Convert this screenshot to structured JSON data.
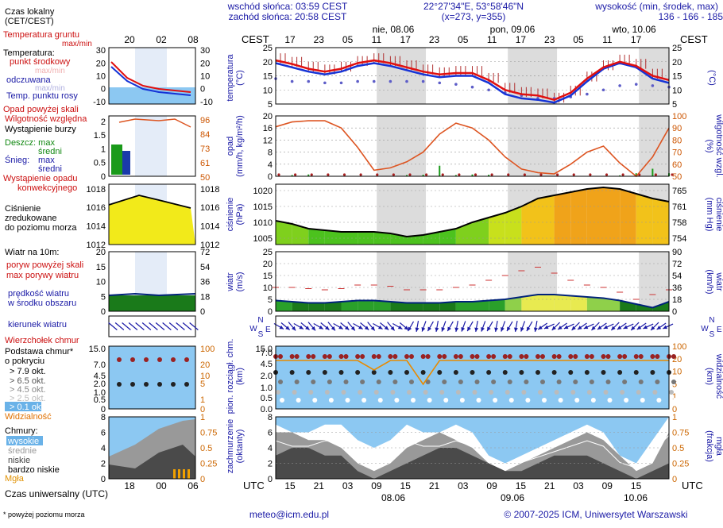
{
  "header": {
    "sunrise": "wschód słońca: 03:59 CEST",
    "sunset": "zachód słońca: 20:58 CEST",
    "coords": "22°27'34\"E, 53°58'46\"N",
    "grid": "(x=273, y=355)",
    "elev_title": "wysokość (min, środek, max)",
    "elev_values": "136 - 166 - 185 m"
  },
  "dates_top": [
    "nie, 08.06",
    "pon, 09.06",
    "wto, 10.06"
  ],
  "dates_bottom": [
    "08.06",
    "09.06",
    "10.06"
  ],
  "cest_label": "CEST",
  "utc_label": "UTC",
  "cest_ticks": [
    "17",
    "23",
    "05",
    "11",
    "17",
    "23",
    "05",
    "11",
    "17",
    "23",
    "05",
    "11",
    "17"
  ],
  "utc_ticks": [
    "15",
    "21",
    "03",
    "09",
    "15",
    "21",
    "03",
    "09",
    "15",
    "21",
    "03",
    "09",
    "15"
  ],
  "legend_local_ticks": [
    "20",
    "02",
    "08"
  ],
  "legend_utc_ticks": [
    "18",
    "00",
    "06"
  ],
  "legend": {
    "local_time": "Czas lokalny",
    "local_time2": "(CET/CEST)",
    "ground_temp": "Temperatura gruntu",
    "ground_temp2": "max/min",
    "temperature": "Temperatura:",
    "mid_point": "punkt środkowy",
    "max_min": "max/min",
    "felt": "odczuwana",
    "dew": "Temp. punktu rosy",
    "precip_above": "Opad powyżej skali",
    "humidity": "Wilgotność względna",
    "storm": "Wystąpienie burzy",
    "rain": "Deszcz: max",
    "avg1": "średni",
    "snow": "Śnieg:",
    "snow_max": "max",
    "avg2": "średni",
    "conv1": "Wystąpienie opadu",
    "conv2": "konwekcyjnego",
    "pressure1": "Ciśnienie",
    "pressure2": "zredukowane",
    "pressure3": "do poziomu morza",
    "wind_title": "Wiatr na 10m:",
    "gust_above": "poryw powyżej skali",
    "gust_max": "max porywy wiatru",
    "wind_speed": "prędkość wiatru",
    "wind_speed2": "w środku obszaru",
    "wind_dir": "kierunek wiatru",
    "cloud_top": "Wierzchołek chmur",
    "cloud_base": "Podstawa chmur*",
    "cloud_base2": "o pokryciu",
    "okt79": "> 7.9 okt.",
    "okt65": "> 6.5 okt.",
    "okt45": "> 4.5 okt.",
    "okt25": "> 2.5 okt.",
    "okt01": "> 0.1 okt.",
    "visibility": "Widzialność",
    "clouds": "Chmury:",
    "high": "wysokie",
    "middle": "średnie",
    "low": "niskie",
    "very_low": "bardzo niskie",
    "fog": "Mgła",
    "utc_time": "Czas uniwersalny (UTC)",
    "footnote": "* powyżej poziomu morza"
  },
  "axis_titles": {
    "temp_l": "temperatura",
    "temp_l2": "(°C)",
    "temp_r": "(°C)",
    "prec_l": "opad",
    "prec_l2": "(mm/h, kg/m²/h)",
    "prec_r1": "(%)",
    "prec_r2": "wilgotność wzgl.",
    "pres_l": "ciśnienie",
    "pres_l2": "(hPa)",
    "pres_r1": "(mm Hg)",
    "pres_r2": "ciśnienie",
    "wind_l": "wiatr",
    "wind_l2": "(m/s)",
    "wind_r1": "(km/h)",
    "wind_r2": "wiatr",
    "cb_l1": "pion. rozciągł. chm.",
    "cb_l2": "(km)",
    "cb_r1": "(km)",
    "cb_r2": "widzialność",
    "cl_l1": "zachmurzenie",
    "cl_l2": "(oktanty)",
    "cl_r1": "(frakcja)",
    "cl_r2": "mgła"
  },
  "compass": {
    "n": "N",
    "w": "W",
    "s": "S",
    "e": "E"
  },
  "footer": {
    "email": "meteo@icm.edu.pl",
    "copyright": "© 2007-2025 ICM, Uniwersytet Warszawski"
  },
  "colors": {
    "temp": "#e01010",
    "felt": "#1533d6",
    "dew": "#5d5dc8",
    "humidity": "#dd5522",
    "pressure": "#000000",
    "wind": "#00227a",
    "sky": "#8cc8f2",
    "night": "#c8c8c8",
    "visibility": "#e88a00"
  },
  "chart_data": [
    {
      "type": "line",
      "title": "temperatura",
      "ylabel": "(°C)",
      "ylim": [
        5,
        25
      ],
      "yticks": [
        5,
        10,
        15,
        20,
        25
      ],
      "time_hours_utc": [
        0,
        3,
        6,
        9,
        12,
        15,
        18,
        21,
        24,
        27,
        30,
        33,
        36,
        39,
        42,
        45,
        48,
        51,
        54,
        57,
        60,
        63,
        66,
        69,
        72
      ],
      "series": [
        {
          "name": "punkt środkowy",
          "values": [
            20.5,
            19.2,
            17.5,
            16.5,
            17.5,
            19.5,
            20.5,
            19.5,
            18,
            16.5,
            15.5,
            16,
            16,
            13.5,
            10,
            8.5,
            8,
            6.5,
            9,
            14,
            18,
            20,
            18.5,
            15,
            13.5
          ]
        },
        {
          "name": "odczuwana",
          "values": [
            19.5,
            18,
            16.5,
            15.5,
            16.5,
            18.5,
            19.5,
            18.5,
            17,
            15.5,
            14.5,
            15,
            15,
            12.5,
            8.5,
            7,
            6.5,
            5.5,
            8,
            13,
            17.5,
            19.5,
            18,
            14,
            12.5
          ]
        },
        {
          "name": "Temp. punktu rosy",
          "values": [
            14,
            13,
            13,
            12.5,
            12.5,
            13,
            13,
            13,
            13,
            13,
            12.5,
            12,
            11,
            10,
            9,
            8,
            7,
            7,
            7.5,
            8.5,
            10,
            11.5,
            12,
            11.5,
            11
          ]
        }
      ]
    },
    {
      "type": "line",
      "title": "opad",
      "ylabel": "(mm/h, kg/m²/h)",
      "ylim": [
        0,
        20
      ],
      "yticks": [
        0,
        4,
        8,
        12,
        16,
        20
      ],
      "y2ticks": [
        50,
        60,
        70,
        80,
        90,
        100
      ],
      "series": [
        {
          "name": "Wilgotność względna",
          "values": [
            91,
            95,
            96,
            96,
            90,
            74,
            55,
            57,
            62,
            70,
            85,
            94,
            90,
            80,
            66,
            56,
            53,
            52,
            60,
            70,
            75,
            61,
            50,
            66,
            90
          ]
        },
        {
          "name": "Deszcz: max",
          "values": [
            0,
            0.4,
            0.6,
            0,
            0,
            0,
            0,
            0,
            0.4,
            0.5,
            3.5,
            0.4,
            0.6,
            0.5,
            0,
            0,
            0,
            0,
            0,
            0,
            0,
            0.3,
            1,
            2.5,
            1
          ]
        }
      ]
    },
    {
      "type": "area",
      "title": "ciśnienie",
      "ylabel": "(hPa)",
      "ylim": [
        1003,
        1022
      ],
      "yticks": [
        1005,
        1010,
        1015,
        1020
      ],
      "y2ticks": [
        754,
        758,
        761,
        765
      ],
      "series": [
        {
          "name": "Ciśnienie",
          "values": [
            1010.5,
            1009.5,
            1008,
            1007.5,
            1007,
            1007,
            1007,
            1006.5,
            1005.5,
            1006,
            1007,
            1008,
            1010,
            1011.5,
            1013,
            1015,
            1017.5,
            1018.5,
            1019.5,
            1020.5,
            1021,
            1020.5,
            1019,
            1017.5,
            1016.5
          ]
        }
      ]
    },
    {
      "type": "line",
      "title": "wiatr",
      "ylabel": "(m/s)",
      "ylim": [
        0,
        25
      ],
      "yticks": [
        0,
        5,
        10,
        15,
        20,
        25
      ],
      "y2ticks": [
        0,
        18,
        36,
        54,
        72,
        90
      ],
      "series": [
        {
          "name": "prędkość wiatru",
          "values": [
            4.5,
            4,
            3.5,
            3.5,
            4,
            4.5,
            4.5,
            4,
            3.5,
            3.5,
            3.5,
            4,
            4,
            4.5,
            5,
            6,
            7,
            7,
            6.5,
            6,
            5.5,
            4.5,
            3,
            1.5,
            4
          ]
        },
        {
          "name": "max porywy wiatru",
          "values": [
            10,
            10,
            9.5,
            9,
            9.5,
            11,
            11,
            10.5,
            9,
            9,
            9,
            10,
            11,
            13,
            15,
            17,
            18.5,
            16,
            13,
            11,
            10,
            8,
            5,
            7,
            9
          ]
        }
      ]
    },
    {
      "type": "scatter",
      "title": "pion. rozciągł. chm.",
      "ylabel": "(km)",
      "yticks": [
        0,
        0.5,
        1,
        2,
        4.5,
        7,
        15
      ],
      "y2ticks": [
        0,
        1,
        5,
        10,
        20,
        100
      ],
      "series": [
        {
          "name": "Wierzchołek chmur",
          "values": [
            7,
            7,
            7,
            7,
            7,
            7,
            7,
            7,
            7,
            7,
            7,
            7,
            7,
            7,
            7,
            7,
            7,
            7,
            7,
            7,
            7,
            7,
            7,
            7,
            7
          ]
        },
        {
          "name": "Widzialność",
          "values": [
            20,
            20,
            20,
            20,
            20,
            20,
            10,
            20,
            20,
            5,
            20,
            20,
            20,
            20,
            20,
            20,
            20,
            20,
            20,
            20,
            20,
            20,
            20,
            20,
            20
          ]
        }
      ]
    },
    {
      "type": "area",
      "title": "zachmurzenie",
      "ylabel": "(oktanty)",
      "ylim": [
        0,
        8
      ],
      "yticks": [
        0,
        2,
        4,
        6,
        8
      ],
      "y2ticks": [
        0,
        0.25,
        0.5,
        0.75,
        1
      ],
      "series": [
        {
          "name": "wysokie",
          "values": [
            7,
            6,
            6,
            7,
            7,
            5,
            4,
            5,
            7,
            6,
            6,
            7,
            6,
            3,
            2,
            3,
            4,
            5,
            6,
            7,
            6,
            3,
            2,
            5,
            8
          ]
        },
        {
          "name": "średnie",
          "values": [
            6,
            6,
            5,
            5,
            4,
            2,
            1,
            2,
            4,
            5,
            6,
            5,
            4,
            2,
            1,
            2,
            3,
            4,
            5,
            6,
            5,
            3,
            1,
            2,
            6
          ]
        },
        {
          "name": "niskie",
          "values": [
            3,
            4,
            4,
            3,
            3,
            1,
            0,
            1,
            2,
            3,
            4,
            4,
            3,
            2,
            1,
            1,
            2,
            3,
            3,
            3,
            2,
            1,
            0,
            1,
            2
          ]
        }
      ]
    }
  ]
}
